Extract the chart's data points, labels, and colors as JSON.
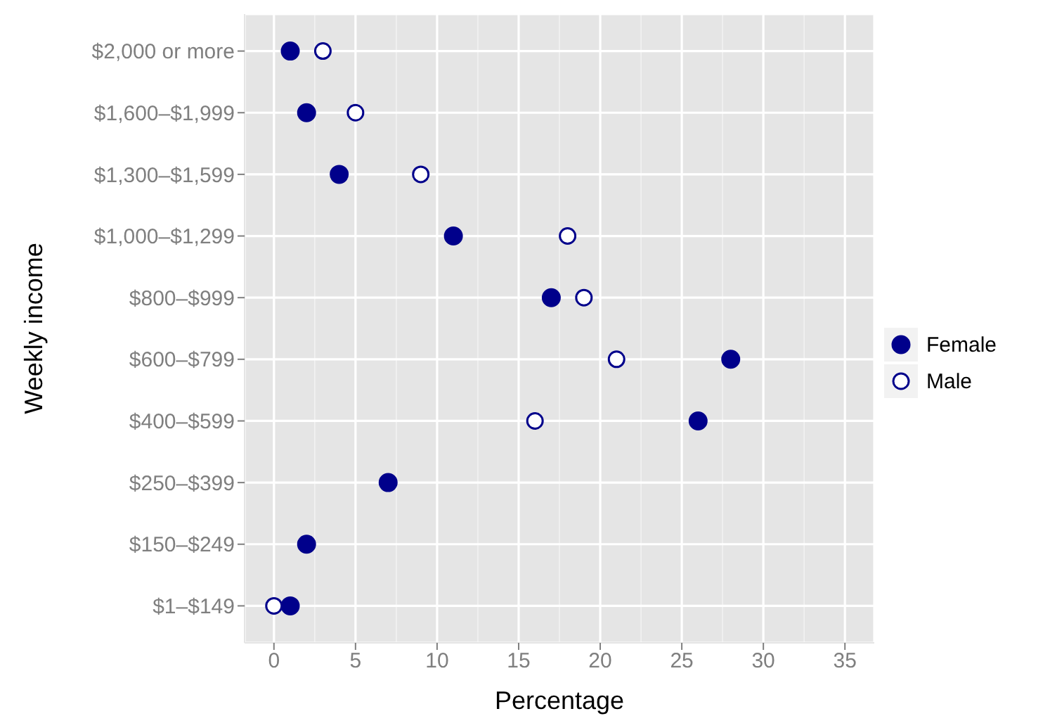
{
  "chart_data": {
    "type": "scatter",
    "orientation": "horizontal",
    "xlabel": "Percentage",
    "ylabel": "Weekly income",
    "categories": [
      "$2,000 or more",
      "$1,600–$1,999",
      "$1,300–$1,599",
      "$1,000–$1,299",
      "$800–$999",
      "$600–$799",
      "$400–$599",
      "$250–$399",
      "$150–$249",
      "$1–$149"
    ],
    "series": [
      {
        "name": "Female",
        "color": "#00008b",
        "marker": "circle",
        "values": [
          1,
          2,
          4,
          11,
          17,
          28,
          26,
          7,
          2,
          1
        ]
      },
      {
        "name": "Male",
        "color": "#00008b",
        "marker": "circle-open",
        "values": [
          3,
          5,
          9,
          18,
          19,
          21,
          16,
          null,
          null,
          0
        ]
      }
    ],
    "xlim": [
      -1.8,
      36.8
    ],
    "xticks": [
      0,
      5,
      10,
      15,
      20,
      25,
      30,
      35
    ],
    "grid": true,
    "legend": "right"
  }
}
